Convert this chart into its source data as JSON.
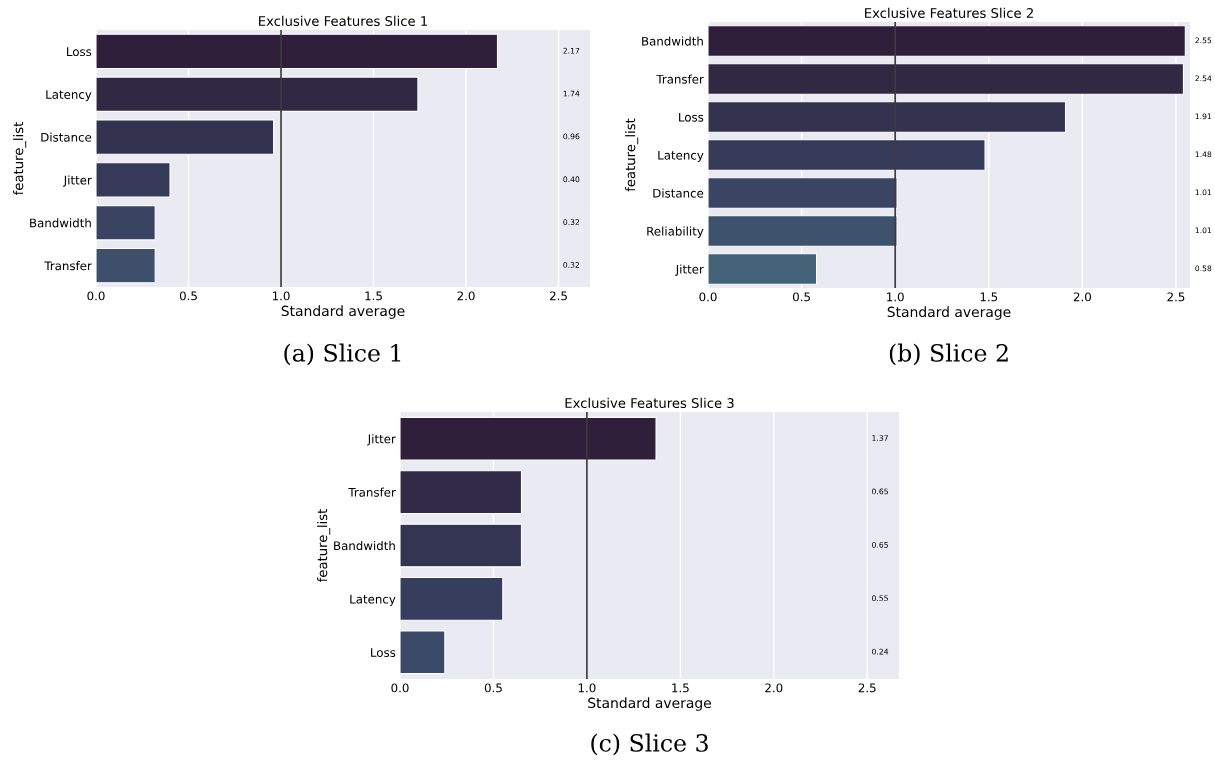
{
  "chart_data": [
    {
      "type": "bar",
      "orientation": "horizontal",
      "title": "Exclusive Features Slice 1",
      "xlabel": "Standard average",
      "ylabel": "feature_list",
      "categories": [
        "Loss",
        "Latency",
        "Distance",
        "Jitter",
        "Bandwidth",
        "Transfer"
      ],
      "values": [
        2.17,
        1.74,
        0.96,
        0.4,
        0.32,
        0.32
      ],
      "value_labels": [
        "2.17",
        "1.74",
        "0.96",
        "0.40",
        "0.32",
        "0.32"
      ],
      "colors": [
        "#2f1f3b",
        "#302943",
        "#33324f",
        "#363a59",
        "#3a4462",
        "#3e4f6c"
      ],
      "xlim": [
        0,
        2.67
      ],
      "xticks": [
        {
          "value": 0,
          "label": "0.0"
        },
        {
          "value": 0.5,
          "label": "0.5"
        },
        {
          "value": 1,
          "label": "1.0"
        },
        {
          "value": 1.5,
          "label": "1.5"
        },
        {
          "value": 2,
          "label": "2.0"
        },
        {
          "value": 2.5,
          "label": "2.5"
        }
      ],
      "ref_lines": [
        {
          "axis": "x",
          "value": 1,
          "color": "#3c3c3c"
        }
      ],
      "grid": "x",
      "annotations": [
        "(a) Slice 1"
      ]
    },
    {
      "type": "bar",
      "orientation": "horizontal",
      "title": "Exclusive Features Slice 2",
      "xlabel": "Standard average",
      "ylabel": "feature_list",
      "categories": [
        "Bandwidth",
        "Transfer",
        "Loss",
        "Latency",
        "Distance",
        "Reliability",
        "Jitter"
      ],
      "values": [
        2.55,
        2.54,
        1.91,
        1.48,
        1.01,
        1.01,
        0.58
      ],
      "value_labels": [
        "2.55",
        "2.54",
        "1.91",
        "1.48",
        "1.01",
        "1.01",
        "0.58"
      ],
      "colors": [
        "#2e1e3a",
        "#302943",
        "#33324f",
        "#363a59",
        "#3a4563",
        "#3e526e",
        "#446378"
      ],
      "xlim": [
        0,
        2.575
      ],
      "xticks": [
        {
          "value": 0,
          "label": "0.0"
        },
        {
          "value": 0.5,
          "label": "0.5"
        },
        {
          "value": 1,
          "label": "1.0"
        },
        {
          "value": 1.5,
          "label": "1.5"
        },
        {
          "value": 2,
          "label": "2.0"
        },
        {
          "value": 2.5,
          "label": "2.5"
        }
      ],
      "ref_lines": [
        {
          "axis": "x",
          "value": 1,
          "color": "#3c3c3c"
        }
      ],
      "grid": "x",
      "annotations": [
        "(b) Slice 2"
      ]
    },
    {
      "type": "bar",
      "orientation": "horizontal",
      "title": "Exclusive Features Slice 3",
      "xlabel": "Standard average",
      "ylabel": "feature_list",
      "categories": [
        "Jitter",
        "Transfer",
        "Bandwidth",
        "Latency",
        "Loss"
      ],
      "values": [
        1.37,
        0.65,
        0.65,
        0.55,
        0.24
      ],
      "value_labels": [
        "1.37",
        "0.65",
        "0.65",
        "0.55",
        "0.24"
      ],
      "colors": [
        "#2f1f3b",
        "#312b47",
        "#343553",
        "#373e5d",
        "#3b4a68"
      ],
      "xlim": [
        0,
        2.67
      ],
      "xticks": [
        {
          "value": 0,
          "label": "0.0"
        },
        {
          "value": 0.5,
          "label": "0.5"
        },
        {
          "value": 1,
          "label": "1.0"
        },
        {
          "value": 1.5,
          "label": "1.5"
        },
        {
          "value": 2,
          "label": "2.0"
        },
        {
          "value": 2.5,
          "label": "2.5"
        }
      ],
      "ref_lines": [
        {
          "axis": "x",
          "value": 1,
          "color": "#3c3c3c"
        }
      ],
      "grid": "x",
      "annotations": [
        "(c) Slice 3"
      ]
    }
  ]
}
